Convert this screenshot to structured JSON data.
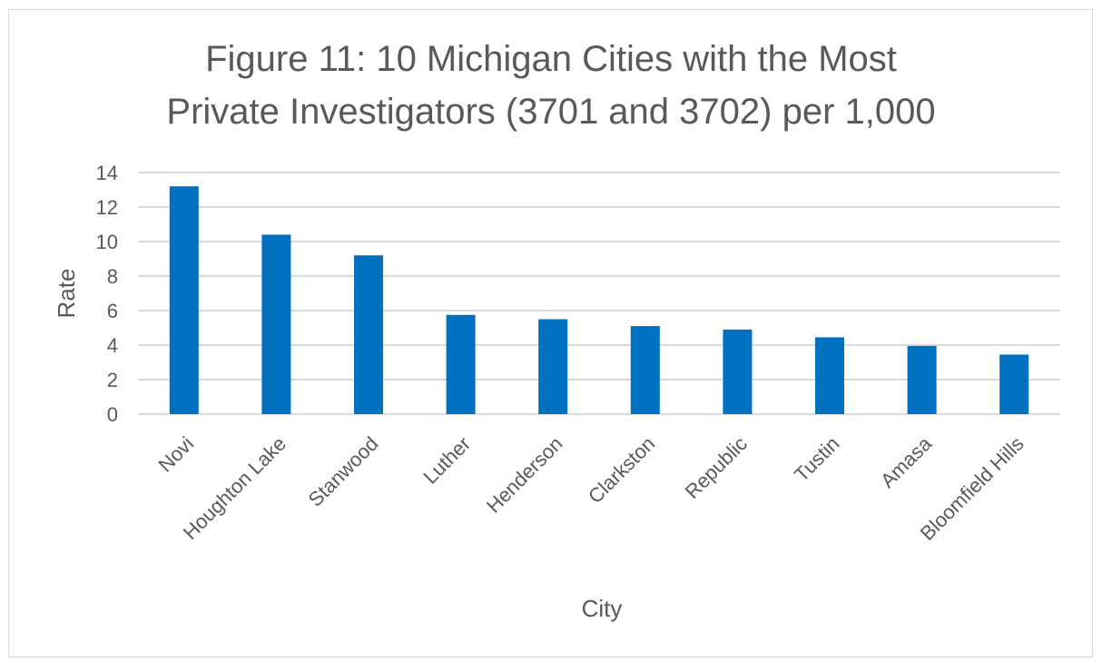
{
  "chart_data": {
    "type": "bar",
    "title_lines": [
      "Figure 11: 10 Michigan Cities with the Most",
      "Private Investigators (3701 and 3702) per 1,000"
    ],
    "xlabel": "City",
    "ylabel": "Rate",
    "categories": [
      "Novi",
      "Houghton Lake",
      "Stanwood",
      "Luther",
      "Henderson",
      "Clarkston",
      "Republic",
      "Tustin",
      "Amasa",
      "Bloomfield Hills"
    ],
    "values": [
      13.2,
      10.4,
      9.2,
      5.75,
      5.5,
      5.1,
      4.9,
      4.45,
      3.95,
      3.45
    ],
    "ylim": [
      0,
      14
    ],
    "yticks": [
      0,
      2,
      4,
      6,
      8,
      10,
      12,
      14
    ],
    "grid": true,
    "legend": "none",
    "bar_color": "#0070C0",
    "grid_color": "#d9d9d9"
  }
}
